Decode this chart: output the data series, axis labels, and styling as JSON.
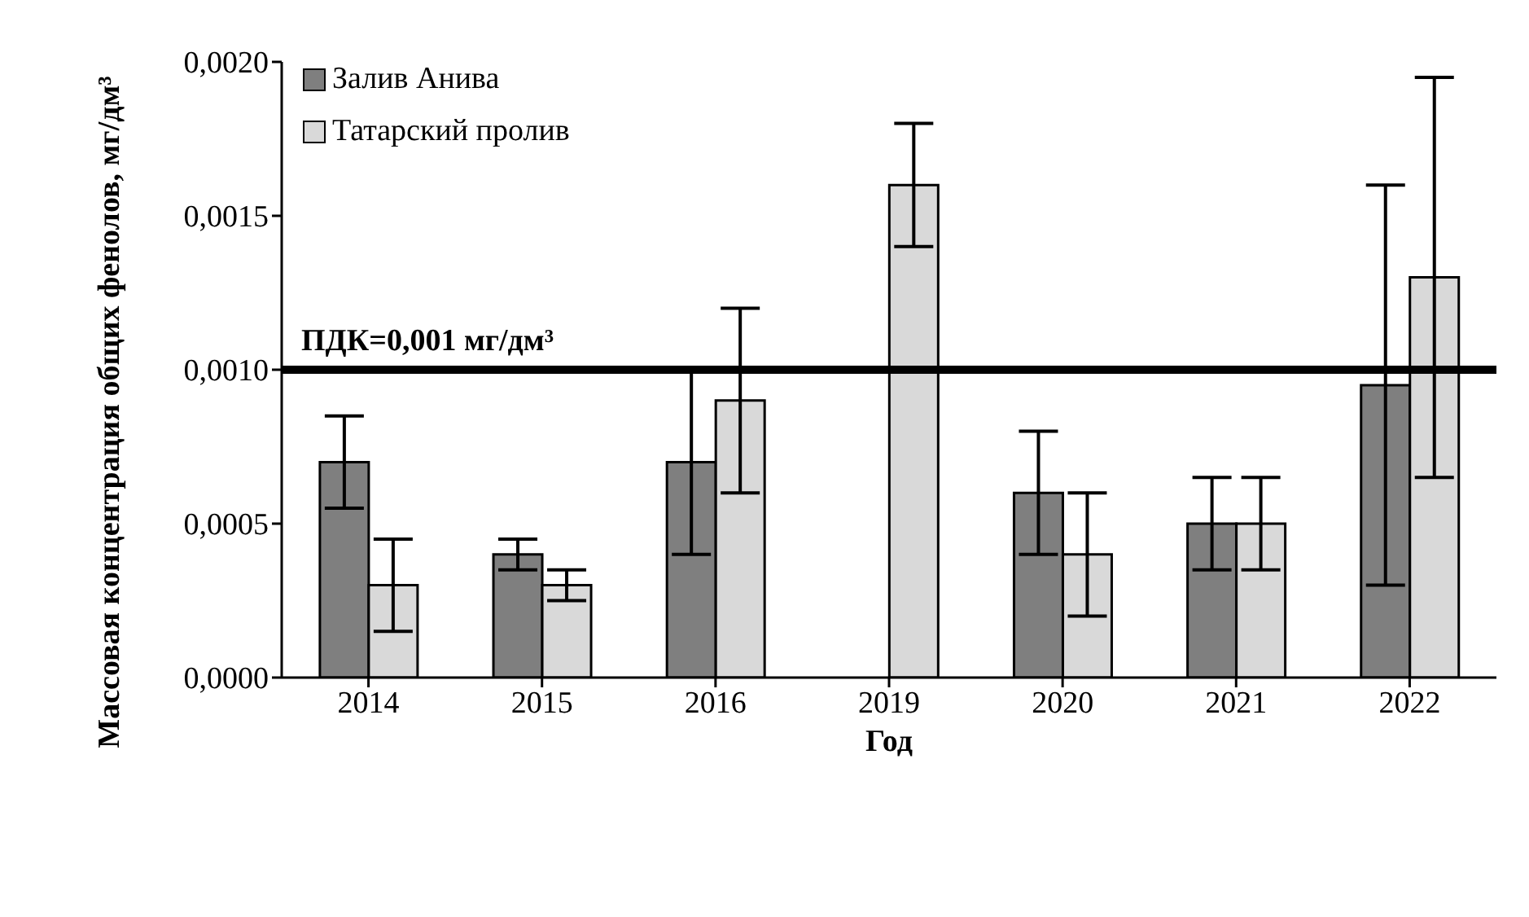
{
  "chart_data": {
    "type": "bar",
    "xlabel": "Год",
    "ylabel": "Массовая концентрация общих фенолов, мг/дм³",
    "categories": [
      "2014",
      "2015",
      "2016",
      "2019",
      "2020",
      "2021",
      "2022"
    ],
    "series": [
      {
        "name": "Залив Анива",
        "color": "#7f7f7f",
        "values": [
          0.0007,
          0.0004,
          0.0007,
          null,
          0.0006,
          0.0005,
          0.00095
        ],
        "errors": [
          0.00015,
          5e-05,
          0.0003,
          null,
          0.0002,
          0.00015,
          0.00065
        ]
      },
      {
        "name": "Татарский пролив",
        "color": "#d9d9d9",
        "values": [
          0.0003,
          0.0003,
          0.0009,
          0.0016,
          0.0004,
          0.0005,
          0.0013
        ],
        "errors": [
          0.00015,
          5e-05,
          0.0003,
          0.0002,
          0.0002,
          0.00015,
          0.00065
        ]
      }
    ],
    "ylim": [
      0,
      0.002
    ],
    "yticks": [
      {
        "value": 0,
        "label": "0,0000"
      },
      {
        "value": 0.0005,
        "label": "0,0005"
      },
      {
        "value": 0.001,
        "label": "0,0010"
      },
      {
        "value": 0.0015,
        "label": "0,0015"
      },
      {
        "value": 0.002,
        "label": "0,0020"
      }
    ],
    "ref_lines": [
      {
        "axis": "y",
        "value": 0.001,
        "label": "ПДК=0,001 мг/дм³",
        "color": "#000000"
      }
    ],
    "legend": "top left",
    "grid": false
  }
}
